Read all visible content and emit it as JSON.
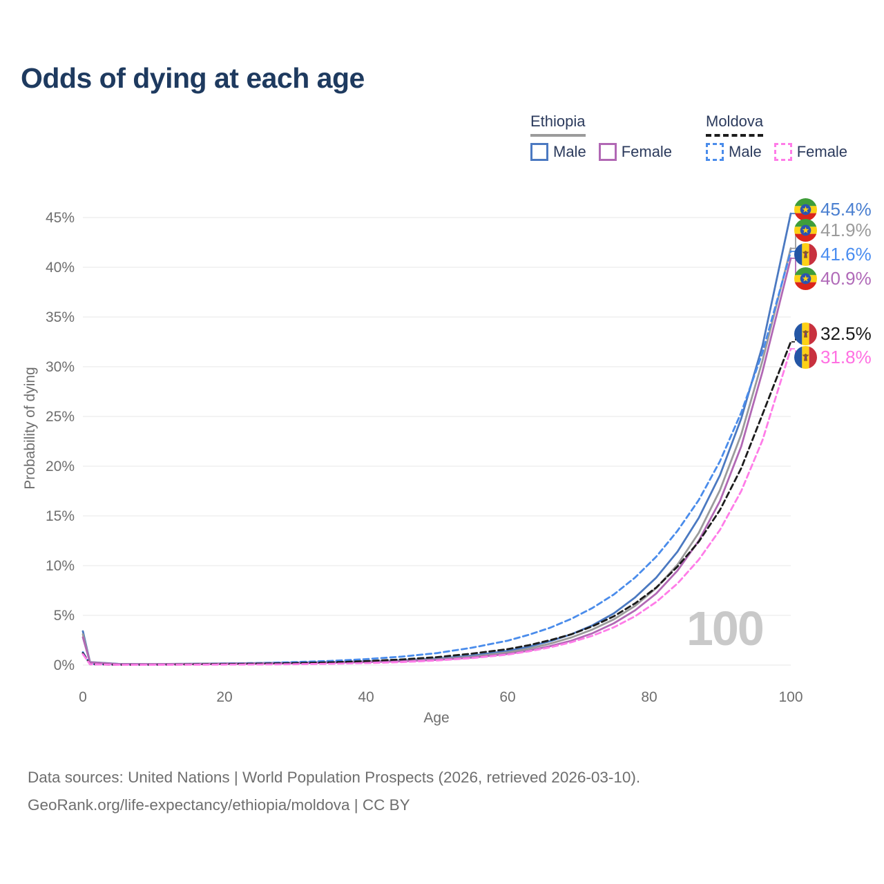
{
  "title": "Odds of dying at each age",
  "watermark": "100",
  "legend": {
    "groups": [
      {
        "country": "Ethiopia",
        "items": [
          {
            "label": "Male",
            "series_key": "ethiopia-male"
          },
          {
            "label": "Female",
            "series_key": "ethiopia-female"
          }
        ]
      },
      {
        "country": "Moldova",
        "items": [
          {
            "label": "Male",
            "series_key": "moldova-male"
          },
          {
            "label": "Female",
            "series_key": "moldova-female"
          }
        ]
      }
    ]
  },
  "footer": {
    "line1": "Data sources: United Nations | World Population Prospects (2026, retrieved 2026-03-10).",
    "line2": "GeoRank.org/life-expectancy/ethiopia/moldova | CC BY"
  },
  "styles": {
    "title_color": "#1e3a5f",
    "axis_text_color": "#6e6e6e",
    "grid_color": "#ececec",
    "watermark_color": "#c9c9c9",
    "legend_text_color": "#2b3a5c"
  },
  "chart_data": {
    "type": "line",
    "title": "Odds of dying at each age",
    "xlabel": "Age",
    "ylabel": "Probability of dying",
    "xlim": [
      0,
      100
    ],
    "ylim": [
      0,
      46
    ],
    "x_ticks": [
      0,
      20,
      40,
      60,
      80,
      100
    ],
    "y_ticks": [
      0,
      5,
      10,
      15,
      20,
      25,
      30,
      35,
      40,
      45
    ],
    "y_tick_suffix": "%",
    "grid": "horizontal",
    "legend_position": "top-right",
    "ages": [
      0,
      1,
      5,
      10,
      15,
      20,
      25,
      30,
      35,
      40,
      45,
      50,
      55,
      60,
      63,
      66,
      69,
      72,
      75,
      78,
      81,
      84,
      87,
      90,
      93,
      96,
      100
    ],
    "series": [
      {
        "key": "ethiopia-male",
        "name": "Ethiopia Male",
        "country": "Ethiopia",
        "sex": "Male",
        "style": "solid",
        "dashed": false,
        "color": "#4b79c1",
        "label_color": "#4a7fd0",
        "end_label": "45.4%",
        "end_value": 45.4,
        "values": [
          3.4,
          0.3,
          0.12,
          0.1,
          0.13,
          0.17,
          0.2,
          0.24,
          0.3,
          0.38,
          0.48,
          0.65,
          0.95,
          1.43,
          1.85,
          2.4,
          3.1,
          4.0,
          5.2,
          6.8,
          8.8,
          11.4,
          14.8,
          19.1,
          24.8,
          32.1,
          45.4
        ]
      },
      {
        "key": "ethiopia-both",
        "name": "Ethiopia Both sexes",
        "country": "Ethiopia",
        "sex": "Both",
        "style": "solid",
        "dashed": false,
        "color": "#9b9b9b",
        "label_color": "#9b9b9b",
        "end_label": "41.9%",
        "end_value": 41.9,
        "values": [
          3.1,
          0.29,
          0.1,
          0.09,
          0.11,
          0.15,
          0.18,
          0.21,
          0.27,
          0.34,
          0.43,
          0.58,
          0.85,
          1.28,
          1.65,
          2.15,
          2.78,
          3.58,
          4.6,
          5.95,
          7.75,
          10.1,
          13.3,
          17.6,
          23.2,
          30.6,
          41.9
        ]
      },
      {
        "key": "moldova-male",
        "name": "Moldova Male",
        "country": "Moldova",
        "sex": "Male",
        "style": "dashed",
        "dashed": true,
        "color": "#4a8ceb",
        "label_color": "#4a8df0",
        "end_label": "41.6%",
        "end_value": 41.6,
        "values": [
          1.3,
          0.1,
          0.04,
          0.04,
          0.08,
          0.15,
          0.21,
          0.3,
          0.42,
          0.6,
          0.85,
          1.2,
          1.75,
          2.45,
          3.05,
          3.75,
          4.65,
          5.75,
          7.1,
          8.8,
          10.9,
          13.5,
          16.6,
          20.5,
          25.4,
          31.4,
          41.6
        ]
      },
      {
        "key": "ethiopia-female",
        "name": "Ethiopia Female",
        "country": "Ethiopia",
        "sex": "Female",
        "style": "solid",
        "dashed": false,
        "color": "#b168b4",
        "label_color": "#b06ab8",
        "end_label": "40.9%",
        "end_value": 40.9,
        "values": [
          2.8,
          0.27,
          0.09,
          0.08,
          0.1,
          0.13,
          0.16,
          0.19,
          0.24,
          0.3,
          0.38,
          0.52,
          0.75,
          1.12,
          1.45,
          1.9,
          2.45,
          3.2,
          4.2,
          5.5,
          7.2,
          9.5,
          12.5,
          16.5,
          22.0,
          29.5,
          40.9
        ]
      },
      {
        "key": "moldova-both",
        "name": "Moldova Both sexes",
        "country": "Moldova",
        "sex": "Both",
        "style": "dashed",
        "dashed": true,
        "color": "#1c1c1c",
        "label_color": "#1a1a1a",
        "end_label": "32.5%",
        "end_value": 32.5,
        "values": [
          1.2,
          0.09,
          0.03,
          0.03,
          0.06,
          0.1,
          0.14,
          0.2,
          0.28,
          0.4,
          0.56,
          0.8,
          1.15,
          1.6,
          2.0,
          2.5,
          3.1,
          3.9,
          4.9,
          6.2,
          7.8,
          9.9,
          12.4,
          15.6,
          19.8,
          25.2,
          32.5
        ]
      },
      {
        "key": "moldova-female",
        "name": "Moldova Female",
        "country": "Moldova",
        "sex": "Female",
        "style": "dashed",
        "dashed": true,
        "color": "#ff7ce8",
        "label_color": "#ff70e2",
        "end_label": "31.8%",
        "end_value": 31.8,
        "values": [
          1.1,
          0.08,
          0.025,
          0.025,
          0.035,
          0.05,
          0.065,
          0.09,
          0.13,
          0.2,
          0.3,
          0.46,
          0.7,
          1.05,
          1.38,
          1.78,
          2.3,
          2.95,
          3.8,
          4.9,
          6.35,
          8.2,
          10.6,
          13.6,
          17.5,
          22.6,
          31.8
        ]
      }
    ]
  }
}
